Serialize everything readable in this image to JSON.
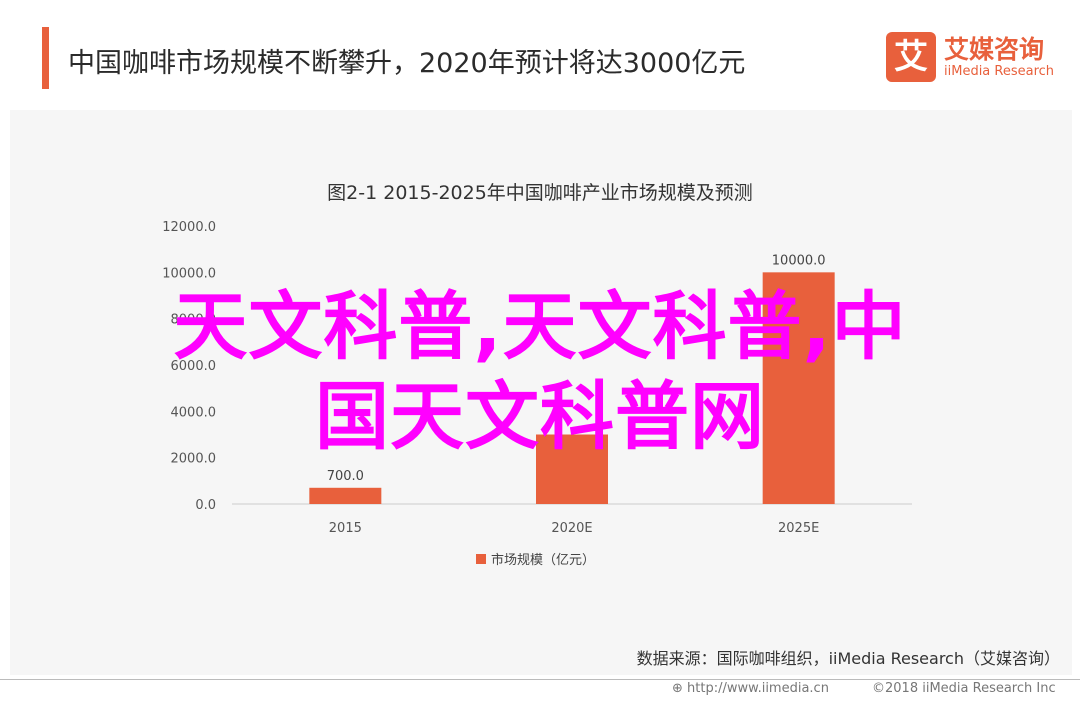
{
  "header": {
    "headline": "中国咖啡市场规模不断攀升，2020年预计将达3000亿元",
    "logo_glyph": "艾",
    "logo_cn": "艾媒咨询",
    "logo_en": "iiMedia Research"
  },
  "overlay": {
    "line1": "天文科普,天文科普,中",
    "line2": "国天文科普网"
  },
  "chart_data": {
    "type": "bar",
    "title": "图2-1 2015-2025年中国咖啡产业市场规模及预测",
    "categories": [
      "2015",
      "2020E",
      "2025E"
    ],
    "series": [
      {
        "name": "市场规模（亿元）",
        "values": [
          700.0,
          3000.0,
          10000.0
        ],
        "color": "#e8603c"
      }
    ],
    "data_labels": [
      "700.0",
      "",
      "10000.0"
    ],
    "y_ticks": [
      "0.0",
      "2000.0",
      "4000.0",
      "6000.0",
      "8000.0",
      "10000.0",
      "12000.0"
    ],
    "ylim": [
      0,
      12000
    ],
    "legend_position": "bottom-center",
    "grid": false
  },
  "source": "数据来源：国际咖啡组织，iiMedia Research（艾媒咨询）",
  "footer": {
    "url": "http://www.iimedia.cn",
    "copyright": "©2018  iiMedia Research  Inc"
  }
}
